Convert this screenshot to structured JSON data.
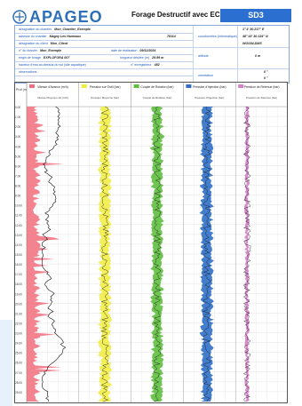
{
  "header": {
    "brand": "APAGEO",
    "title": "Forage Destructif avec ECL",
    "tag": "SD3"
  },
  "info": {
    "chantier": {
      "label": "désignation du chantier",
      "value": "Mon_Chantier_Exemple"
    },
    "lieu": {
      "label": "adresse du chantier",
      "value": "Magny Les Hameaux",
      "code": "78114"
    },
    "client": {
      "label": "désignation du client",
      "value": "Mon_Client"
    },
    "dossier": {
      "label": "n° du dossier",
      "value": "Mon_Exemple",
      "date_label": "date de réalisation",
      "date": "09/12/2024"
    },
    "engin": {
      "label": "engin de forage",
      "value": "EXPLOFORA 007",
      "prof_label": "longueur désirée (m)",
      "prof": "29.99 m"
    },
    "nappe": {
      "label": "hauteur d'eau au-dessus du sol (site aquatique)",
      "ens_label": "n° enregistreur",
      "ens": "482"
    },
    "obs": {
      "label": "observations"
    },
    "coord_label": "coordonnées (informatique)",
    "coord1": "1° 4' 30.217\" E",
    "coord2": "48° 43' 30.134\" N",
    "systeme": "WGS84-DMS",
    "altitude_label": "altitude",
    "altitude": "0 m",
    "orientation_label": "orientation",
    "orientation1": "0 °",
    "orientation2": "0 °"
  },
  "log": {
    "depth_label": "Prof (m)",
    "depths": [
      "0.00",
      "1.00",
      "2.00",
      "3.00",
      "4.00",
      "5.00",
      "6.00",
      "7.00",
      "8.00",
      "9.00",
      "10.00",
      "11.00",
      "12.00",
      "13.00",
      "14.00",
      "15.00",
      "16.00",
      "17.00",
      "18.00",
      "19.00",
      "20.00",
      "21.00",
      "22.00",
      "23.00",
      "24.00",
      "25.00",
      "26.00",
      "27.00",
      "28.00",
      "29.00"
    ],
    "tracks": [
      {
        "name": "Vitesse d'Avance (m/h)",
        "sub": "Vitesse Moyenne 22 (m/h)",
        "color": "#f26d7d"
      },
      {
        "name": "Pression sur Outil (bar)",
        "sub": "Pression Moyenne (bar)",
        "color": "#f1ec3c"
      },
      {
        "name": "Couple de Rotation (bar)",
        "sub": "Couple de Rotation (bar)",
        "color": "#5fbf3f"
      },
      {
        "name": "Pression d'Injection (bar)",
        "sub": "Pression d'Injection (bar)",
        "color": "#2f6fc7"
      },
      {
        "name": "Pression de Retenue (bar)",
        "sub": "Pression de Retenue (bar)",
        "color": "#d47fc8"
      }
    ]
  }
}
